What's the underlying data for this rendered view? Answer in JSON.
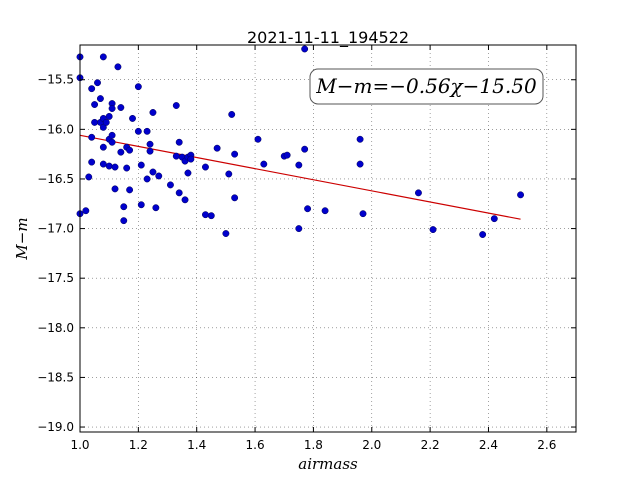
{
  "chart_data": {
    "type": "scatter",
    "title": "2021-11-11_194522",
    "xlabel": "airmass",
    "ylabel": "M−m",
    "xlim": [
      1.0,
      2.7
    ],
    "ylim": [
      -19.05,
      -15.15
    ],
    "xticks": [
      1.0,
      1.2,
      1.4,
      1.6,
      1.8,
      2.0,
      2.2,
      2.4,
      2.6
    ],
    "xtick_labels": [
      "1.0",
      "1.2",
      "1.4",
      "1.6",
      "1.8",
      "2.0",
      "2.2",
      "2.4",
      "2.6"
    ],
    "yticks": [
      -15.5,
      -16.0,
      -16.5,
      -17.0,
      -17.5,
      -18.0,
      -18.5,
      -19.0
    ],
    "ytick_labels": [
      "−15.5",
      "−16.0",
      "−16.5",
      "−17.0",
      "−17.5",
      "−18.0",
      "−18.5",
      "−19.0"
    ],
    "grid": true,
    "annotation": "M−m=−0.56χ−15.50",
    "fit": {
      "slope": -0.56,
      "intercept": -15.5,
      "x_range": [
        1.0,
        2.51
      ],
      "color": "#cc0000"
    },
    "point_color": "#0000cc",
    "points": [
      [
        1.0,
        -15.27
      ],
      [
        1.0,
        -15.48
      ],
      [
        1.0,
        -16.85
      ],
      [
        1.02,
        -16.82
      ],
      [
        1.03,
        -16.48
      ],
      [
        1.04,
        -15.59
      ],
      [
        1.04,
        -16.08
      ],
      [
        1.04,
        -16.33
      ],
      [
        1.05,
        -15.75
      ],
      [
        1.05,
        -15.93
      ],
      [
        1.06,
        -15.53
      ],
      [
        1.07,
        -15.69
      ],
      [
        1.07,
        -15.93
      ],
      [
        1.08,
        -15.27
      ],
      [
        1.08,
        -15.89
      ],
      [
        1.08,
        -15.98
      ],
      [
        1.08,
        -16.18
      ],
      [
        1.08,
        -16.35
      ],
      [
        1.09,
        -15.93
      ],
      [
        1.1,
        -15.87
      ],
      [
        1.1,
        -16.1
      ],
      [
        1.1,
        -16.37
      ],
      [
        1.11,
        -15.74
      ],
      [
        1.11,
        -15.79
      ],
      [
        1.11,
        -16.06
      ],
      [
        1.11,
        -16.13
      ],
      [
        1.12,
        -16.38
      ],
      [
        1.12,
        -16.6
      ],
      [
        1.13,
        -15.37
      ],
      [
        1.14,
        -15.78
      ],
      [
        1.14,
        -16.23
      ],
      [
        1.15,
        -16.78
      ],
      [
        1.15,
        -16.92
      ],
      [
        1.16,
        -16.18
      ],
      [
        1.16,
        -16.39
      ],
      [
        1.17,
        -16.21
      ],
      [
        1.17,
        -16.61
      ],
      [
        1.18,
        -15.89
      ],
      [
        1.2,
        -15.57
      ],
      [
        1.2,
        -16.02
      ],
      [
        1.21,
        -16.76
      ],
      [
        1.21,
        -16.36
      ],
      [
        1.23,
        -16.02
      ],
      [
        1.23,
        -16.5
      ],
      [
        1.24,
        -16.15
      ],
      [
        1.24,
        -16.22
      ],
      [
        1.25,
        -15.83
      ],
      [
        1.25,
        -16.43
      ],
      [
        1.26,
        -16.79
      ],
      [
        1.27,
        -16.47
      ],
      [
        1.31,
        -16.56
      ],
      [
        1.33,
        -16.27
      ],
      [
        1.33,
        -15.76
      ],
      [
        1.34,
        -16.13
      ],
      [
        1.34,
        -16.64
      ],
      [
        1.35,
        -16.28
      ],
      [
        1.36,
        -16.32
      ],
      [
        1.36,
        -16.71
      ],
      [
        1.37,
        -16.28
      ],
      [
        1.37,
        -16.44
      ],
      [
        1.38,
        -16.26
      ],
      [
        1.38,
        -16.3
      ],
      [
        1.43,
        -16.38
      ],
      [
        1.43,
        -16.86
      ],
      [
        1.45,
        -16.87
      ],
      [
        1.47,
        -16.19
      ],
      [
        1.5,
        -17.05
      ],
      [
        1.51,
        -16.45
      ],
      [
        1.52,
        -15.85
      ],
      [
        1.53,
        -16.25
      ],
      [
        1.53,
        -16.69
      ],
      [
        1.61,
        -16.1
      ],
      [
        1.63,
        -16.35
      ],
      [
        1.7,
        -16.27
      ],
      [
        1.71,
        -16.26
      ],
      [
        1.75,
        -16.36
      ],
      [
        1.75,
        -17.0
      ],
      [
        1.77,
        -15.19
      ],
      [
        1.77,
        -16.2
      ],
      [
        1.78,
        -16.8
      ],
      [
        1.84,
        -16.82
      ],
      [
        1.96,
        -16.1
      ],
      [
        1.96,
        -16.35
      ],
      [
        1.97,
        -16.85
      ],
      [
        2.16,
        -16.64
      ],
      [
        2.21,
        -17.01
      ],
      [
        2.38,
        -17.06
      ],
      [
        2.42,
        -16.9
      ],
      [
        2.51,
        -16.66
      ]
    ]
  }
}
